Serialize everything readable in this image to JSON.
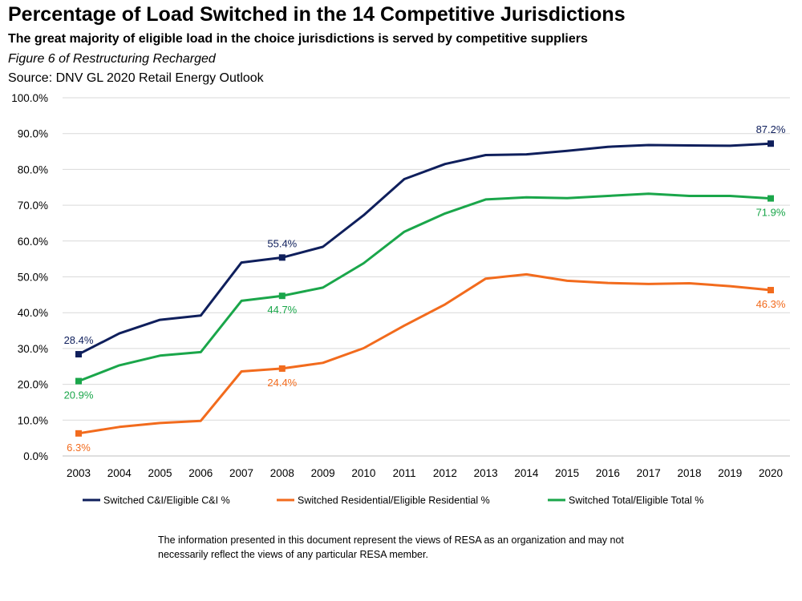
{
  "header": {
    "title": "Percentage of Load Switched in the 14 Competitive Jurisdictions",
    "subtitle": "The great majority of eligible load in the choice jurisdictions is served by competitive suppliers",
    "figure_note": "Figure 6 of Restructuring Recharged",
    "source": "Source: DNV GL 2020 Retail Energy Outlook"
  },
  "chart_data": {
    "type": "line",
    "title": "Percentage of Load Switched in the 14 Competitive Jurisdictions",
    "xlabel": "",
    "ylabel": "",
    "ylim": [
      0,
      100
    ],
    "grid": true,
    "legend_position": "bottom",
    "y_ticks": [
      "0.0%",
      "10.0%",
      "20.0%",
      "30.0%",
      "40.0%",
      "50.0%",
      "60.0%",
      "70.0%",
      "80.0%",
      "90.0%",
      "100.0%"
    ],
    "categories": [
      "2003",
      "2004",
      "2005",
      "2006",
      "2007",
      "2008",
      "2009",
      "2010",
      "2011",
      "2012",
      "2013",
      "2014",
      "2015",
      "2016",
      "2017",
      "2018",
      "2019",
      "2020"
    ],
    "series": [
      {
        "name": "Switched C&I/Eligible C&I %",
        "color": "#0f1f5c",
        "values": [
          28.4,
          34.2,
          38.0,
          39.2,
          54.0,
          55.4,
          58.4,
          67.2,
          77.3,
          81.5,
          84.0,
          84.2,
          85.2,
          86.3,
          86.8,
          86.7,
          86.6,
          87.2
        ],
        "labels": [
          {
            "index": 0,
            "text": "28.4%",
            "position": "above"
          },
          {
            "index": 5,
            "text": "55.4%",
            "position": "above"
          },
          {
            "index": 17,
            "text": "87.2%",
            "position": "above"
          }
        ]
      },
      {
        "name": "Switched Residential/Eligible Residential %",
        "color": "#f26b1d",
        "values": [
          6.3,
          8.1,
          9.2,
          9.8,
          23.6,
          24.4,
          26.0,
          30.1,
          36.4,
          42.3,
          49.5,
          50.7,
          48.9,
          48.3,
          48.0,
          48.2,
          47.4,
          46.3
        ],
        "labels": [
          {
            "index": 0,
            "text": "6.3%",
            "position": "below"
          },
          {
            "index": 5,
            "text": "24.4%",
            "position": "below"
          },
          {
            "index": 17,
            "text": "46.3%",
            "position": "below"
          }
        ]
      },
      {
        "name": "Switched Total/Eligible Total %",
        "color": "#1aa64a",
        "values": [
          20.9,
          25.3,
          28.0,
          29.0,
          43.3,
          44.7,
          47.0,
          53.8,
          62.6,
          67.7,
          71.6,
          72.2,
          72.0,
          72.6,
          73.2,
          72.6,
          72.6,
          71.9
        ],
        "labels": [
          {
            "index": 0,
            "text": "20.9%",
            "position": "below"
          },
          {
            "index": 5,
            "text": "44.7%",
            "position": "below"
          },
          {
            "index": 17,
            "text": "71.9%",
            "position": "below"
          }
        ]
      }
    ]
  },
  "disclaimer": "The information presented in this document represent the views of RESA as an organization and may not necessarily reflect the views of any particular RESA member."
}
